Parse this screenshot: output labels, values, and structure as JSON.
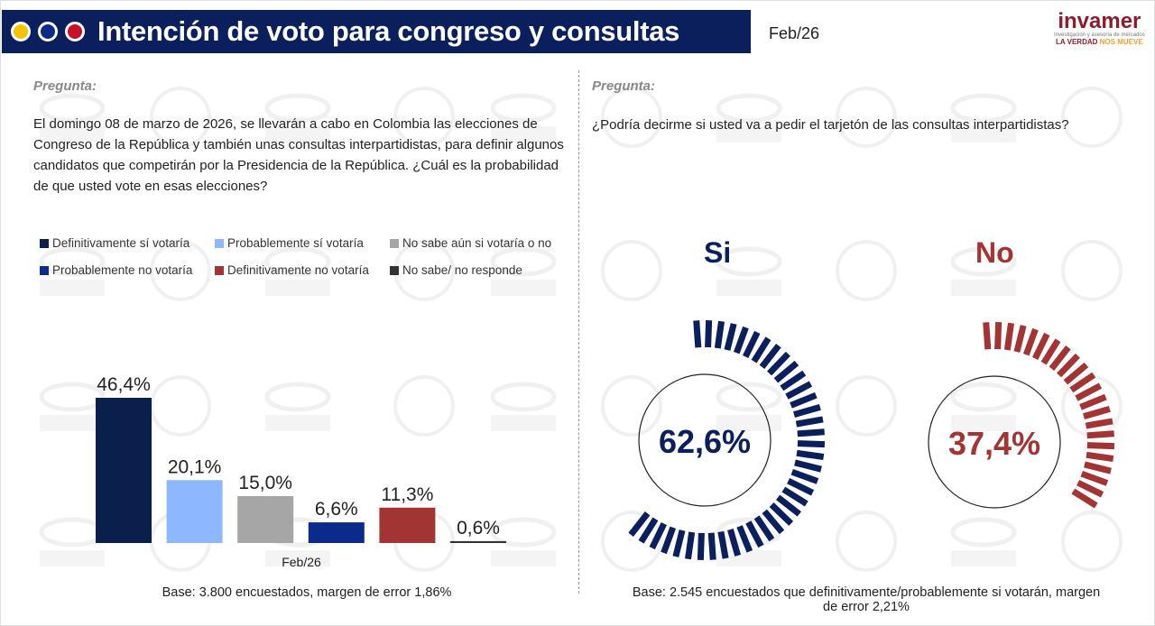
{
  "header": {
    "title": "Intención de voto para congreso y consultas",
    "date": "Feb/26",
    "dot_colors": [
      "#f5c400",
      "#0b2a8c",
      "#c8102e"
    ]
  },
  "logo": {
    "name": "invamer",
    "sub": "Investigación y asesoría de mercados",
    "tagline_a": "LA VERDAD",
    "tagline_b": "NOS MUEVE"
  },
  "watermark": {
    "line1": "NOTICIAS",
    "line2": "CARACOL"
  },
  "left": {
    "question_label": "Pregunta:",
    "question": "El domingo 08 de marzo de 2026, se llevarán a cabo en Colombia las elecciones de Congreso de la República y también unas consultas interpartidistas, para definir algunos candidatos que competirán por la Presidencia de la República. ¿Cuál es la probabilidad de que usted vote en esas elecciones?",
    "base": "Base: 3.800 encuestados, margen de error 1,86%"
  },
  "chart_data": {
    "type": "bar",
    "categories": [
      "Feb/26"
    ],
    "xlabel": "Feb/26",
    "ylabel": "",
    "ylim": [
      0,
      50
    ],
    "series": [
      {
        "name": "Definitivamente sí votaría",
        "value": 46.4,
        "label": "46,4%",
        "color": "#0b1f4d"
      },
      {
        "name": "Probablemente sí votaría",
        "value": 20.1,
        "label": "20,1%",
        "color": "#8db8ff"
      },
      {
        "name": "No sabe aún si votaría o no",
        "value": 15.0,
        "label": "15,0%",
        "color": "#a6a6a6"
      },
      {
        "name": "Probablemente no votaría",
        "value": 6.6,
        "label": "6,6%",
        "color": "#0a2a8c"
      },
      {
        "name": "Definitivamente no votaría",
        "value": 11.3,
        "label": "11,3%",
        "color": "#a33434"
      },
      {
        "name": "No sabe/ no responde",
        "value": 0.6,
        "label": "0,6%",
        "color": "#333333"
      }
    ]
  },
  "right": {
    "question_label": "Pregunta:",
    "question": "¿Podría decirme si usted va a pedir el tarjetón de las consultas interpartidistas?",
    "base": "Base: 2.545 encuestados que definitivamente/probablemente si votarán, margen de error 2,21%",
    "gauges": [
      {
        "label": "Si",
        "value": 62.6,
        "text": "62,6%",
        "color": "#0b1f5c"
      },
      {
        "label": "No",
        "value": 37.4,
        "text": "37,4%",
        "color": "#a33434"
      }
    ]
  }
}
